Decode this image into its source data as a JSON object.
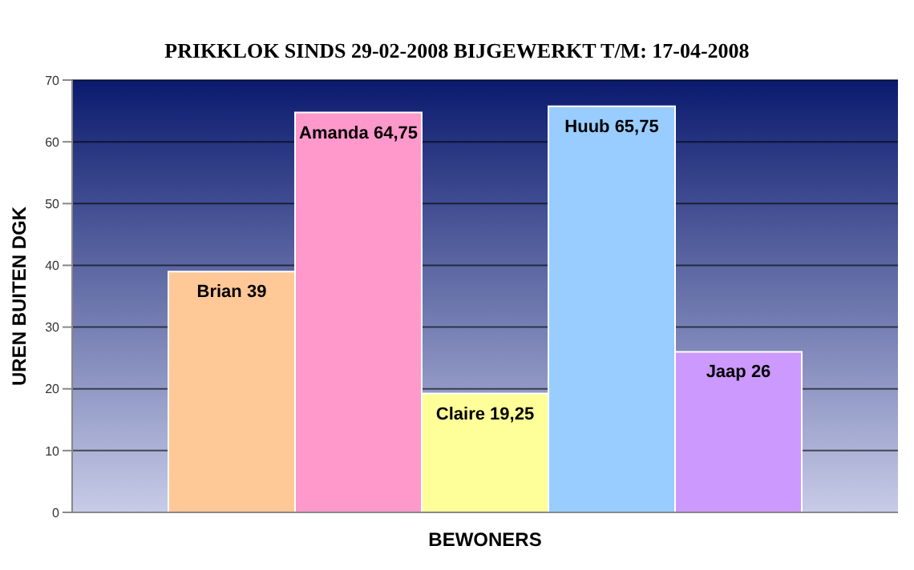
{
  "chart_data": {
    "type": "bar",
    "title": "PRIKKLOK SINDS 29-02-2008 BIJGEWERKT T/M: 17-04-2008",
    "xlabel": "BEWONERS",
    "ylabel": "UREN BUITEN DGK",
    "categories": [
      null,
      null,
      null,
      null,
      null
    ],
    "values": [
      39,
      64.75,
      19.25,
      65.75,
      26
    ],
    "value_labels": [
      "Brian 39",
      "Amanda 64,75",
      "Claire 19,25",
      "Huub 65,75",
      "Jaap 26"
    ],
    "colors": [
      "#ffc896",
      "#ff99cc",
      "#ffff99",
      "#99ccff",
      "#cc99ff"
    ],
    "ylim": [
      0,
      70
    ],
    "yticks": [
      0,
      10,
      20,
      30,
      40,
      50,
      60,
      70
    ],
    "grid": "y"
  }
}
